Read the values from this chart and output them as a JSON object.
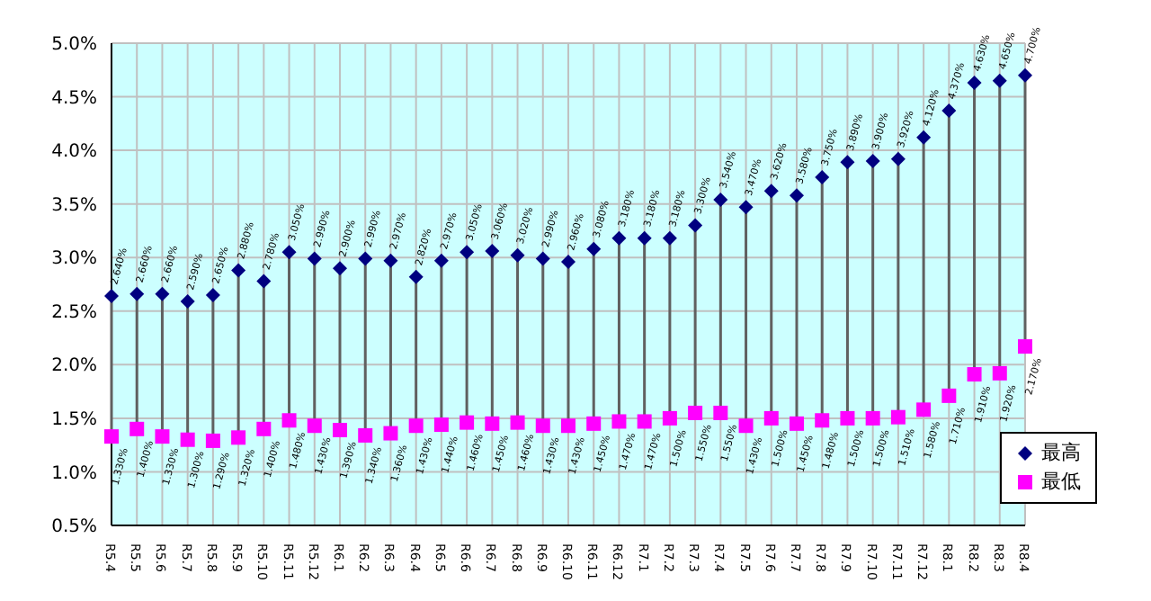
{
  "chart_data": {
    "type": "scatter",
    "categories": [
      "R5.4",
      "R5.5",
      "R5.6",
      "R5.7",
      "R5.8",
      "R5.9",
      "R5.10",
      "R5.11",
      "R5.12",
      "R6.1",
      "R6.2",
      "R6.3",
      "R6.4",
      "R6.5",
      "R6.6",
      "R6.7",
      "R6.8",
      "R6.9",
      "R6.10",
      "R6.11",
      "R6.12",
      "R7.1",
      "R7.2",
      "R7.3",
      "R7.4",
      "R7.5",
      "R7.6",
      "R7.7",
      "R7.8",
      "R7.9",
      "R7.10",
      "R7.11",
      "R7.12",
      "R8.1",
      "R8.2",
      "R8.3",
      "R8.4"
    ],
    "series": [
      {
        "name": "最高",
        "color": "#000080",
        "marker": "diamond",
        "values": [
          2.64,
          2.66,
          2.66,
          2.59,
          2.65,
          2.88,
          2.78,
          3.05,
          2.99,
          2.9,
          2.99,
          2.97,
          2.82,
          2.97,
          3.05,
          3.06,
          3.02,
          2.99,
          2.96,
          3.08,
          3.18,
          3.18,
          3.18,
          3.3,
          3.54,
          3.47,
          3.62,
          3.58,
          3.75,
          3.89,
          3.9,
          3.92,
          4.12,
          4.37,
          4.63,
          4.65,
          4.7
        ],
        "value_labels": [
          "2.640%",
          "2.660%",
          "2.660%",
          "2.590%",
          "2.650%",
          "2.880%",
          "2.780%",
          "3.050%",
          "2.990%",
          "2.900%",
          "2.990%",
          "2.970%",
          "2.820%",
          "2.970%",
          "3.050%",
          "3.060%",
          "3.020%",
          "2.990%",
          "2.960%",
          "3.080%",
          "3.180%",
          "3.180%",
          "3.180%",
          "3.300%",
          "3.540%",
          "3.470%",
          "3.620%",
          "3.580%",
          "3.750%",
          "3.890%",
          "3.900%",
          "3.920%",
          "4.120%",
          "4.370%",
          "4.630%",
          "4.650%",
          "4.700%"
        ]
      },
      {
        "name": "最低",
        "color": "#ff00ff",
        "marker": "square",
        "values": [
          1.33,
          1.4,
          1.33,
          1.3,
          1.29,
          1.32,
          1.4,
          1.48,
          1.43,
          1.39,
          1.34,
          1.36,
          1.43,
          1.44,
          1.46,
          1.45,
          1.46,
          1.43,
          1.43,
          1.45,
          1.47,
          1.47,
          1.5,
          1.55,
          1.55,
          1.43,
          1.5,
          1.45,
          1.48,
          1.5,
          1.5,
          1.51,
          1.58,
          1.71,
          1.91,
          1.92,
          2.17
        ],
        "value_labels": [
          "1.330%",
          "1.400%",
          "1.330%",
          "1.300%",
          "1.290%",
          "1.320%",
          "1.400%",
          "1.480%",
          "1.430%",
          "1.390%",
          "1.340%",
          "1.360%",
          "1.430%",
          "1.440%",
          "1.460%",
          "1.450%",
          "1.460%",
          "1.430%",
          "1.430%",
          "1.450%",
          "1.470%",
          "1.470%",
          "1.500%",
          "1.550%",
          "1.550%",
          "1.430%",
          "1.500%",
          "1.450%",
          "1.480%",
          "1.500%",
          "1.500%",
          "1.510%",
          "1.580%",
          "1.710%",
          "1.910%",
          "1.920%",
          "2.170%"
        ]
      }
    ],
    "ylim": [
      0.5,
      5.0
    ],
    "yticks": [
      {
        "value": 0.5,
        "label": "0.5%"
      },
      {
        "value": 1.0,
        "label": "1.0%"
      },
      {
        "value": 1.5,
        "label": "1.5%"
      },
      {
        "value": 2.0,
        "label": "2.0%"
      },
      {
        "value": 2.5,
        "label": "2.5%"
      },
      {
        "value": 3.0,
        "label": "3.0%"
      },
      {
        "value": 3.5,
        "label": "3.5%"
      },
      {
        "value": 4.0,
        "label": "4.0%"
      },
      {
        "value": 4.5,
        "label": "4.5%"
      },
      {
        "value": 5.0,
        "label": "5.0%"
      }
    ],
    "grid": true,
    "legend": "bottom right"
  }
}
